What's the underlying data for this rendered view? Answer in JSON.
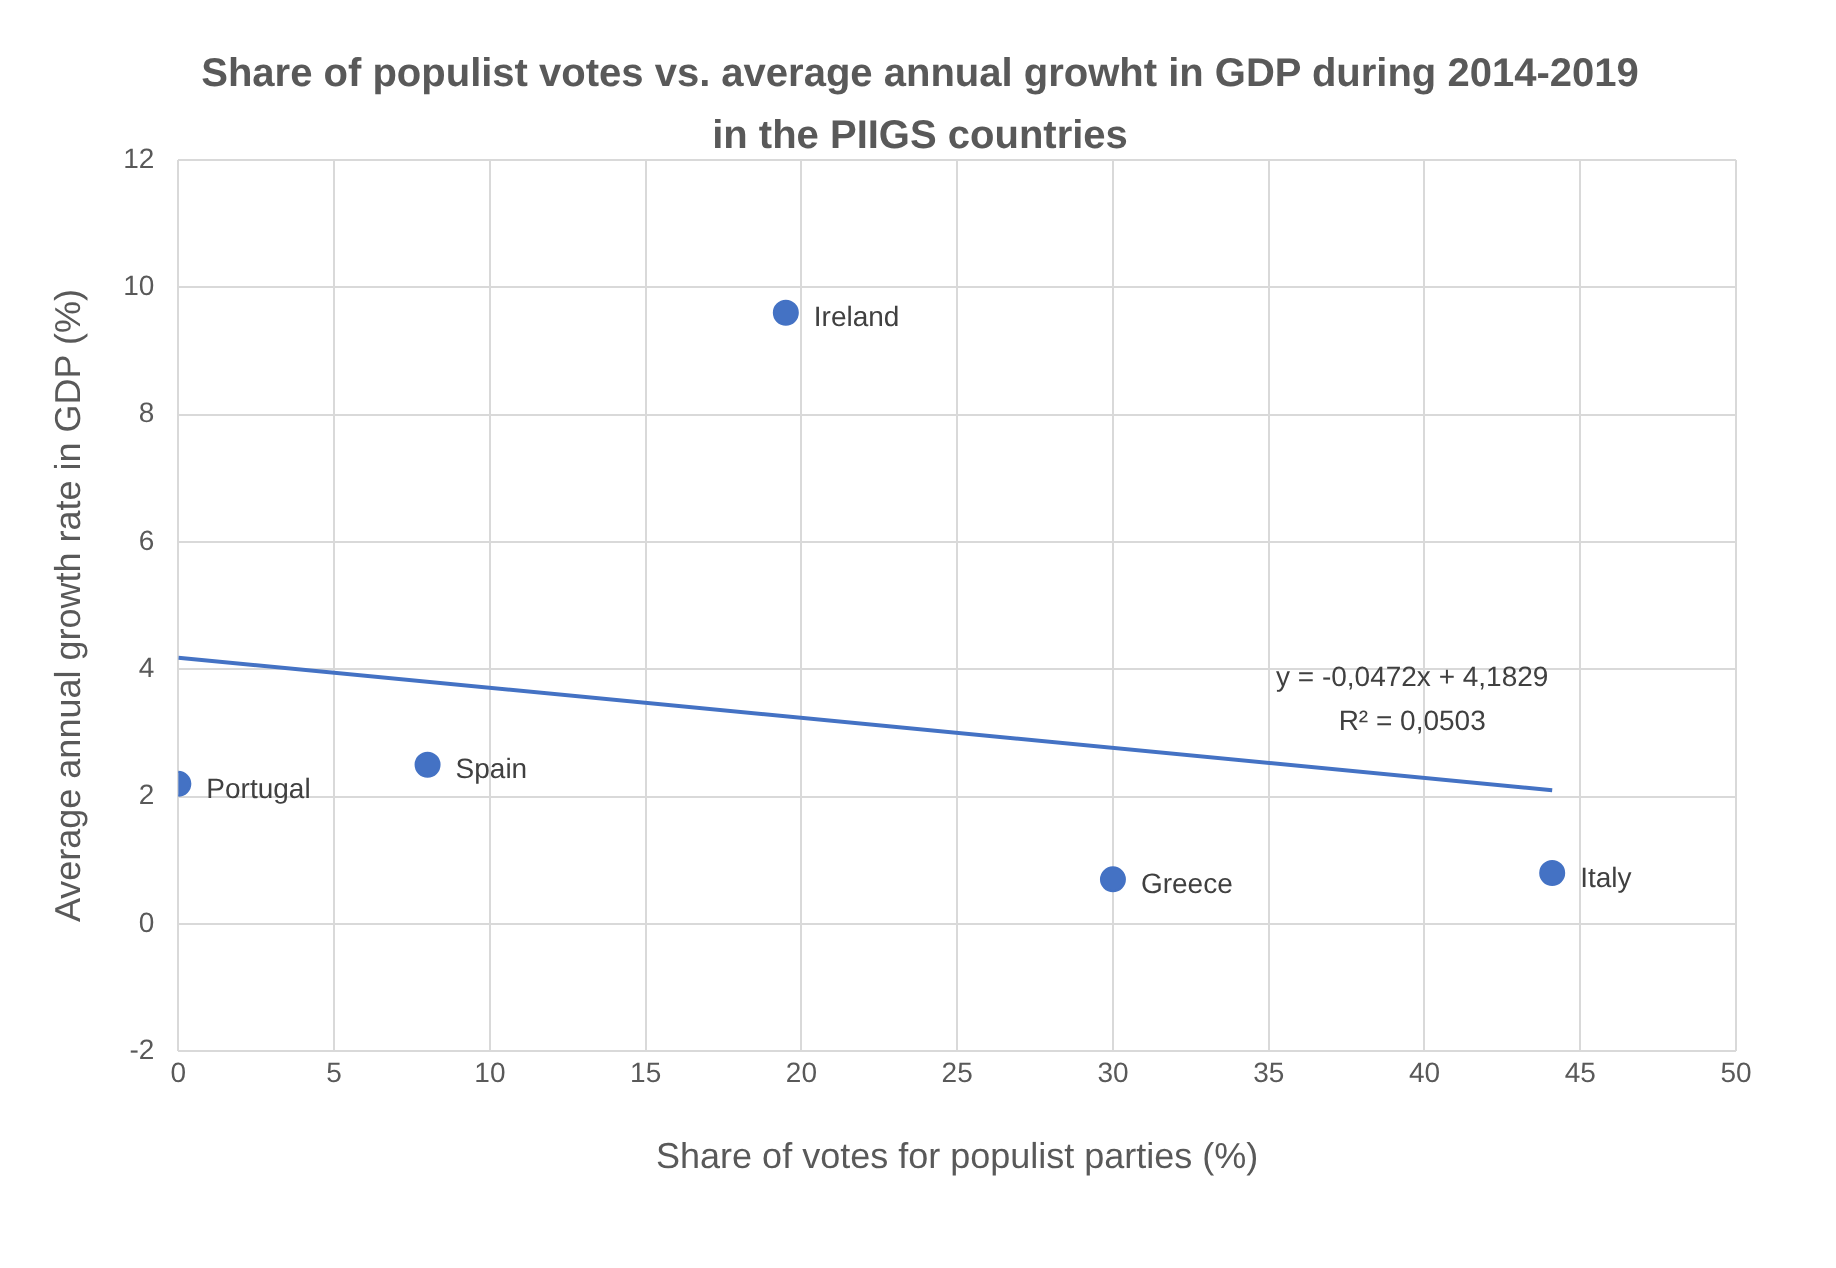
{
  "chart_data": {
    "type": "scatter",
    "title": "Share of populist votes vs. average annual growht in GDP during 2014-2019 in the PIIGS countries",
    "xlabel": "Share of votes for populist parties (%)",
    "ylabel": "Average annual growth rate in GDP (%)",
    "series": [
      {
        "color": "#4472c4",
        "x": [
          0,
          8,
          19.5,
          30,
          44.1
        ],
        "values": [
          2.2,
          2.5,
          9.6,
          0.7,
          0.8
        ]
      },
      {
        "type": "line",
        "color": "#4472c4",
        "x": [
          0,
          44.1
        ],
        "values": [
          4.18,
          2.1
        ],
        "marker": "none"
      }
    ],
    "xlim": [
      0,
      50
    ],
    "xticks": [
      0,
      5,
      10,
      15,
      20,
      25,
      30,
      35,
      40,
      45,
      50
    ],
    "ylim": [
      -2,
      12
    ],
    "yticks": [
      -2,
      0,
      2,
      4,
      6,
      8,
      10,
      12
    ],
    "grid": true,
    "marker": "circle",
    "legend": false,
    "annotations": [
      {
        "text": "Portugal",
        "x": 0,
        "y": 2.2
      },
      {
        "text": "Spain",
        "x": 8,
        "y": 2.5
      },
      {
        "text": "Ireland",
        "x": 19.5,
        "y": 9.6
      },
      {
        "text": "Greece",
        "x": 30,
        "y": 0.7
      },
      {
        "text": "Italy",
        "x": 44.1,
        "y": 0.8
      },
      "y = -0,0472x + 4,1829",
      "R² = 0,0503"
    ]
  }
}
